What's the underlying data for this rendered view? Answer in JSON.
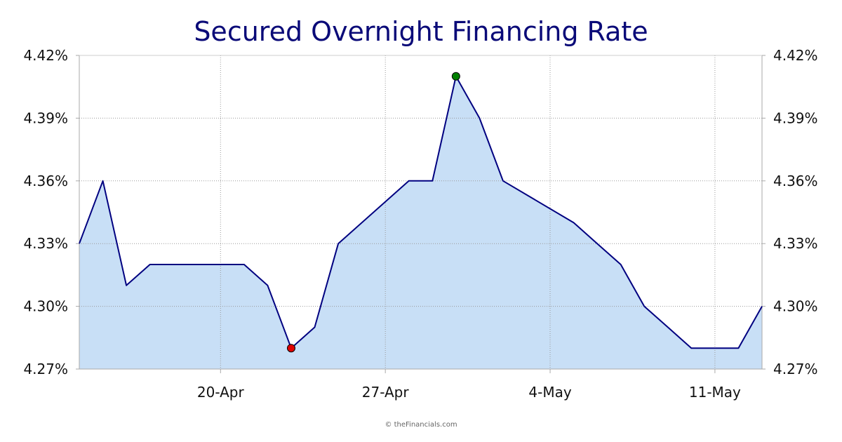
{
  "chart_data": {
    "type": "area",
    "title": "Secured Overnight Financing Rate",
    "xlabel": "",
    "ylabel": "",
    "ylim": [
      4.27,
      4.42
    ],
    "y_ticks": [
      "4.42%",
      "4.39%",
      "4.36%",
      "4.33%",
      "4.30%",
      "4.27%"
    ],
    "y_tick_values": [
      4.42,
      4.39,
      4.36,
      4.33,
      4.3,
      4.27
    ],
    "x_range": [
      "2025-04-14",
      "2025-05-13"
    ],
    "x_ticks": [
      {
        "label": "20-Apr",
        "date": "2025-04-20"
      },
      {
        "label": "27-Apr",
        "date": "2025-04-27"
      },
      {
        "label": "4-May",
        "date": "2025-05-04"
      },
      {
        "label": "11-May",
        "date": "2025-05-11"
      }
    ],
    "grid": true,
    "colors": {
      "line": "#000080",
      "fill": "#c8dff6",
      "min_marker": "#e00000",
      "max_marker": "#008000",
      "title": "#0a0a78"
    },
    "series": [
      {
        "points": [
          {
            "x": "2025-04-14",
            "y": 4.33
          },
          {
            "x": "2025-04-15",
            "y": 4.36
          },
          {
            "x": "2025-04-16",
            "y": 4.31
          },
          {
            "x": "2025-04-17",
            "y": 4.32
          },
          {
            "x": "2025-04-18",
            "y": 4.32
          },
          {
            "x": "2025-04-21",
            "y": 4.32
          },
          {
            "x": "2025-04-22",
            "y": 4.31
          },
          {
            "x": "2025-04-23",
            "y": 4.28
          },
          {
            "x": "2025-04-24",
            "y": 4.29
          },
          {
            "x": "2025-04-25",
            "y": 4.33
          },
          {
            "x": "2025-04-28",
            "y": 4.36
          },
          {
            "x": "2025-04-29",
            "y": 4.36
          },
          {
            "x": "2025-04-30",
            "y": 4.41
          },
          {
            "x": "2025-05-01",
            "y": 4.39
          },
          {
            "x": "2025-05-02",
            "y": 4.36
          },
          {
            "x": "2025-05-05",
            "y": 4.34
          },
          {
            "x": "2025-05-06",
            "y": 4.33
          },
          {
            "x": "2025-05-07",
            "y": 4.32
          },
          {
            "x": "2025-05-08",
            "y": 4.3
          },
          {
            "x": "2025-05-09",
            "y": 4.29
          },
          {
            "x": "2025-05-10",
            "y": 4.28
          },
          {
            "x": "2025-05-11",
            "y": 4.28
          },
          {
            "x": "2025-05-12",
            "y": 4.28
          },
          {
            "x": "2025-05-13",
            "y": 4.3
          }
        ]
      }
    ],
    "markers": [
      {
        "kind": "min",
        "x": "2025-04-23",
        "y": 4.28
      },
      {
        "kind": "max",
        "x": "2025-04-30",
        "y": 4.41
      }
    ],
    "credit": "© theFinancials.com"
  }
}
